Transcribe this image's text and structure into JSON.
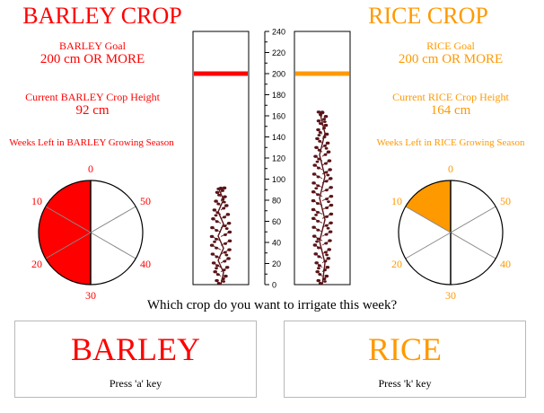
{
  "colors": {
    "barley": "#ff0000",
    "rice": "#ff9900",
    "plant": "#5a1418",
    "box_border": "#000000"
  },
  "barley": {
    "title": "BARLEY CROP",
    "goal_label": "BARLEY Goal",
    "goal_value": "200 cm OR MORE",
    "current_label": "Current BARLEY Crop Height",
    "current_value": "92 cm",
    "weeks_label": "Weeks Left in BARLEY Growing Season",
    "goal_cm": 200,
    "height_cm": 92,
    "weeks_total": 30,
    "weeks_left": 15,
    "wheel_labels": [
      "0",
      "50",
      "40",
      "30",
      "20",
      "10"
    ]
  },
  "rice": {
    "title": "RICE CROP",
    "goal_label": "RICE Goal",
    "goal_value": "200 cm OR MORE",
    "current_label": "Current RICE Crop Height",
    "current_value": "164 cm",
    "weeks_label": "Weeks Left in RICE Growing Season",
    "goal_cm": 200,
    "height_cm": 164,
    "weeks_total": 30,
    "weeks_left": 5,
    "wheel_labels": [
      "0",
      "50",
      "40",
      "30",
      "20",
      "10"
    ]
  },
  "scale": {
    "min": 0,
    "max": 240,
    "ticks": [
      "0",
      "20",
      "40",
      "60",
      "80",
      "100",
      "120",
      "140",
      "160",
      "180",
      "200",
      "220",
      "240"
    ]
  },
  "question": "Which crop do you want to irrigate this week?",
  "choices": {
    "barley": {
      "label": "BARLEY",
      "key_hint": "Press 'a' key"
    },
    "rice": {
      "label": "RICE",
      "key_hint": "Press 'k' key"
    }
  }
}
